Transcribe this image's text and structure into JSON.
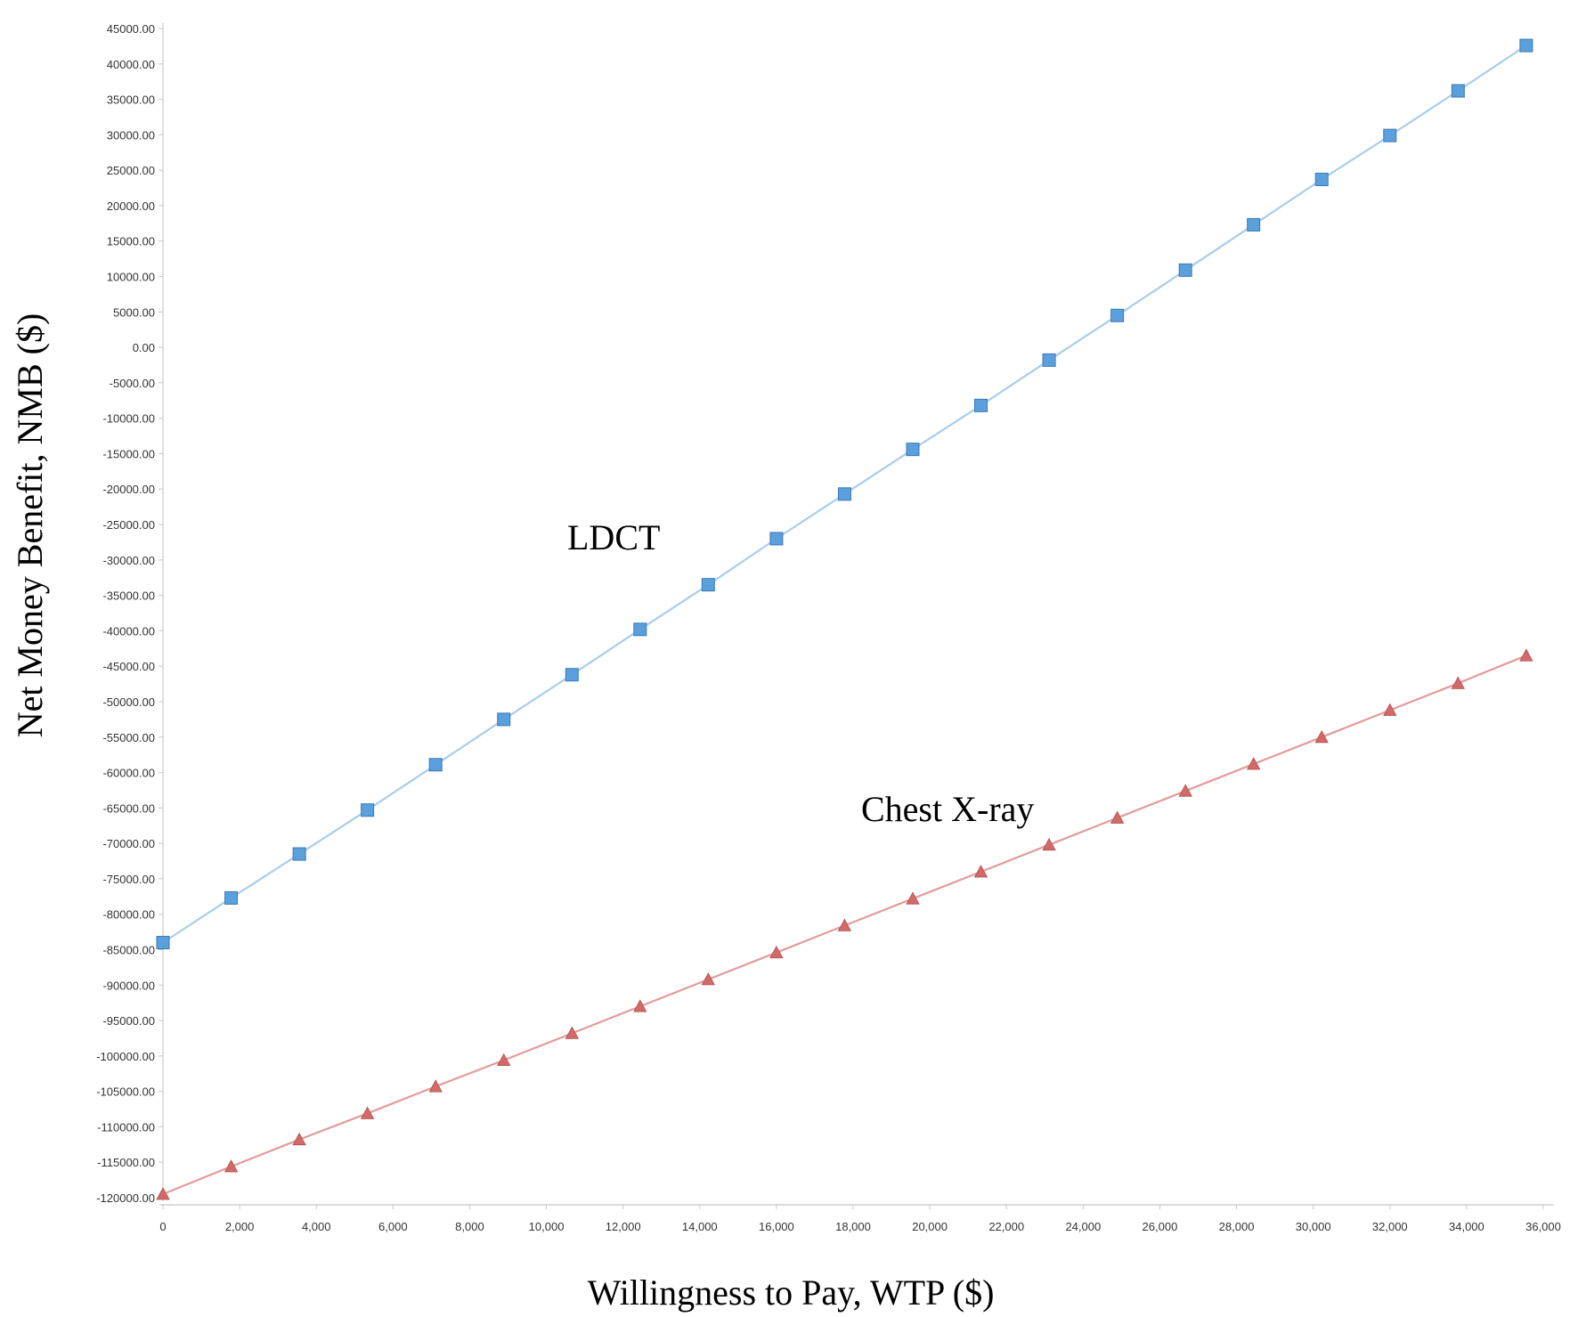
{
  "chart_data": {
    "type": "line",
    "title": "",
    "xlabel": "Willingness to Pay, WTP ($)",
    "ylabel": "Net Money Benefit, NMB ($)",
    "xlim": [
      0,
      36000
    ],
    "ylim": [
      -120000,
      45000
    ],
    "x_ticks": [
      "0",
      "2,000",
      "4,000",
      "6,000",
      "8,000",
      "10,000",
      "12,000",
      "14,000",
      "16,000",
      "18,000",
      "20,000",
      "22,000",
      "24,000",
      "26,000",
      "28,000",
      "30,000",
      "32,000",
      "34,000",
      "36,000"
    ],
    "y_ticks": [
      "45000.00",
      "40000.00",
      "35000.00",
      "30000.00",
      "25000.00",
      "20000.00",
      "15000.00",
      "10000.00",
      "5000.00",
      "0.00",
      "-5000.00",
      "-10000.00",
      "-15000.00",
      "-20000.00",
      "-25000.00",
      "-30000.00",
      "-35000.00",
      "-40000.00",
      "-45000.00",
      "-50000.00",
      "-55000.00",
      "-60000.00",
      "-65000.00",
      "-70000.00",
      "-75000.00",
      "-80000.00",
      "-85000.00",
      "-90000.00",
      "-95000.00",
      "-100000.00",
      "-105000.00",
      "-110000.00",
      "-115000.00",
      "-120000.00"
    ],
    "grid": false,
    "x": [
      0,
      1778,
      3556,
      5333,
      7111,
      8889,
      10667,
      12444,
      14222,
      16000,
      17778,
      19556,
      21333,
      23111,
      24889,
      26667,
      28444,
      30222,
      32000,
      33778,
      35556
    ],
    "series": [
      {
        "name": "LDCT",
        "color": "#5aa0dc",
        "line_color": "#a9cdeb",
        "marker": "square",
        "values": [
          -84000,
          -77700,
          -71500,
          -65300,
          -58900,
          -52500,
          -46200,
          -39800,
          -33500,
          -27000,
          -20700,
          -14400,
          -8200,
          -1800,
          4500,
          10900,
          17300,
          23700,
          29900,
          36200,
          42600
        ]
      },
      {
        "name": "Chest X-ray",
        "color": "#d26a6a",
        "line_color": "#e39b9b",
        "marker": "triangle",
        "values": [
          -119500,
          -115600,
          -111800,
          -108100,
          -104300,
          -100600,
          -96800,
          -93000,
          -89200,
          -85400,
          -81600,
          -77800,
          -74000,
          -70200,
          -66400,
          -62600,
          -58800,
          -55000,
          -51200,
          -47400,
          -43500
        ]
      }
    ]
  }
}
